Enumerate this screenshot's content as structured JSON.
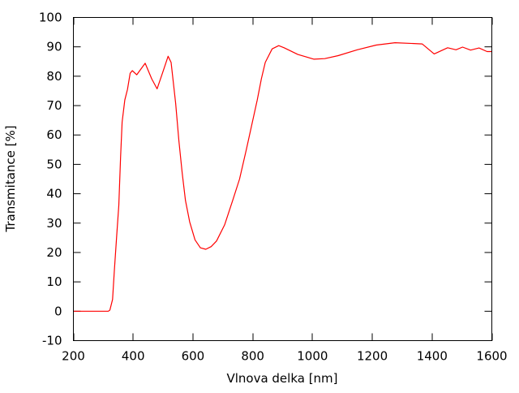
{
  "chart_data": {
    "type": "line",
    "title": "",
    "xlabel": "Vlnova delka [nm]",
    "ylabel": "Transmitance [%]",
    "xlim": [
      200,
      1600
    ],
    "ylim": [
      -10,
      100
    ],
    "xticks": [
      200,
      400,
      600,
      800,
      1000,
      1200,
      1400,
      1600
    ],
    "yticks": [
      -10,
      0,
      10,
      20,
      30,
      40,
      50,
      60,
      70,
      80,
      90,
      100
    ],
    "grid": false,
    "legend": "none",
    "series": [
      {
        "color": "#ff0000",
        "x": [
          200,
          317,
          322,
          331,
          337,
          345,
          352,
          358,
          363,
          372,
          381,
          390,
          397,
          412,
          440,
          462,
          480,
          498,
          517,
          527,
          542,
          553,
          564,
          575,
          589,
          607,
          625,
          643,
          661,
          679,
          706,
          733,
          756,
          779,
          797,
          815,
          829,
          842,
          865,
          887,
          905,
          951,
          1005,
          1041,
          1086,
          1150,
          1213,
          1276,
          1367,
          1407,
          1452,
          1480,
          1502,
          1529,
          1557,
          1584,
          1600
        ],
        "y": [
          0,
          0,
          0.4,
          4,
          13.8,
          25.7,
          36,
          52.5,
          64.4,
          71.9,
          75.5,
          81,
          81.9,
          80.5,
          84.4,
          79.1,
          75.7,
          81,
          86.8,
          84.7,
          70.8,
          58,
          47,
          37.7,
          30.4,
          24.3,
          21.6,
          21.1,
          22,
          23.9,
          29.4,
          37.7,
          45,
          55.2,
          63.5,
          71.9,
          79.1,
          84.7,
          89.3,
          90.4,
          89.7,
          87.4,
          85.8,
          86,
          87,
          89,
          90.6,
          91.4,
          91,
          87.6,
          89.7,
          89,
          89.9,
          88.9,
          89.6,
          88.4,
          88.4
        ]
      }
    ]
  }
}
